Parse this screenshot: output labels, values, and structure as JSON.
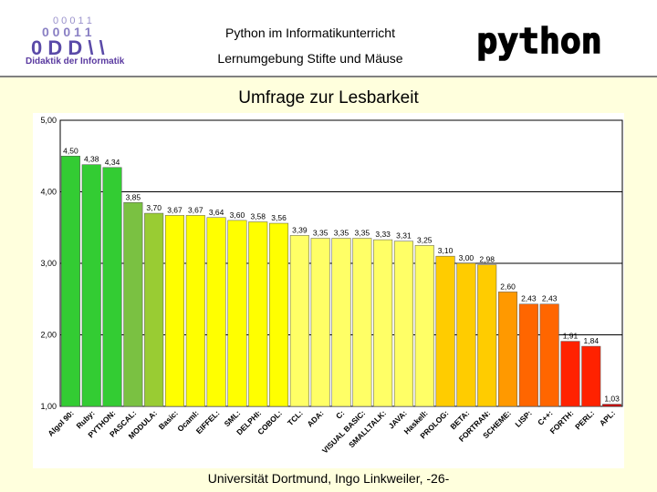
{
  "header": {
    "logo_label": "Didaktik der Informatik",
    "title_line1": "Python im Informatikunterricht",
    "title_line2": "Lernumgebung Stifte und Mäuse",
    "brand_logo": "python"
  },
  "footer": {
    "text": "Universität Dortmund, Ingo Linkweiler, -26-"
  },
  "chart_data": {
    "type": "bar",
    "title": "Umfrage zur Lesbarkeit",
    "ylim": [
      1,
      5
    ],
    "yticks": [
      "1,00",
      "2,00",
      "3,00",
      "4,00",
      "5,00"
    ],
    "grid": true,
    "categories": [
      "Algol 90",
      "Ruby",
      "PYTHON",
      "PASCAL",
      "MODULA",
      "Basic",
      "Ocaml",
      "EIFFEL",
      "SML",
      "DELPHI",
      "COBOL",
      "TCL",
      "ADA",
      "C",
      "VISUAL BASIC",
      "SMALLTALK",
      "JAVA",
      "Haskell",
      "PROLOG",
      "BETA",
      "FORTRAN",
      "SCHEME",
      "LISP",
      "C++",
      "FORTH",
      "PERL",
      "APL"
    ],
    "values": [
      4.5,
      4.38,
      4.34,
      3.85,
      3.7,
      3.67,
      3.67,
      3.64,
      3.6,
      3.58,
      3.56,
      3.39,
      3.35,
      3.35,
      3.35,
      3.33,
      3.31,
      3.25,
      3.1,
      3.0,
      2.98,
      2.6,
      2.43,
      2.43,
      1.91,
      1.84,
      1.03
    ],
    "labels": [
      "4,50",
      "4,38",
      "4,34",
      "3,85",
      "3,70",
      "3,67",
      "3,67",
      "3,64",
      "3,60",
      "3,58",
      "3,56",
      "3,39",
      "3,35",
      "3,35",
      "3,35",
      "3,33",
      "3,31",
      "3,25",
      "3,10",
      "3,00",
      "2,98",
      "2,60",
      "2,43",
      "2,43",
      "1,91",
      "1,84",
      "1,03"
    ],
    "colors": [
      "#33cc33",
      "#33cc33",
      "#33cc33",
      "#7ac142",
      "#99cc33",
      "#ffff00",
      "#ffff00",
      "#ffff00",
      "#ffff00",
      "#ffff00",
      "#ffff00",
      "#ffff66",
      "#ffff66",
      "#ffff66",
      "#ffff66",
      "#ffff66",
      "#ffff66",
      "#ffff66",
      "#ffcc00",
      "#ffcc00",
      "#ffcc00",
      "#ff9900",
      "#ff6600",
      "#ff6600",
      "#ff2200",
      "#ff2200",
      "#cc0000"
    ]
  }
}
